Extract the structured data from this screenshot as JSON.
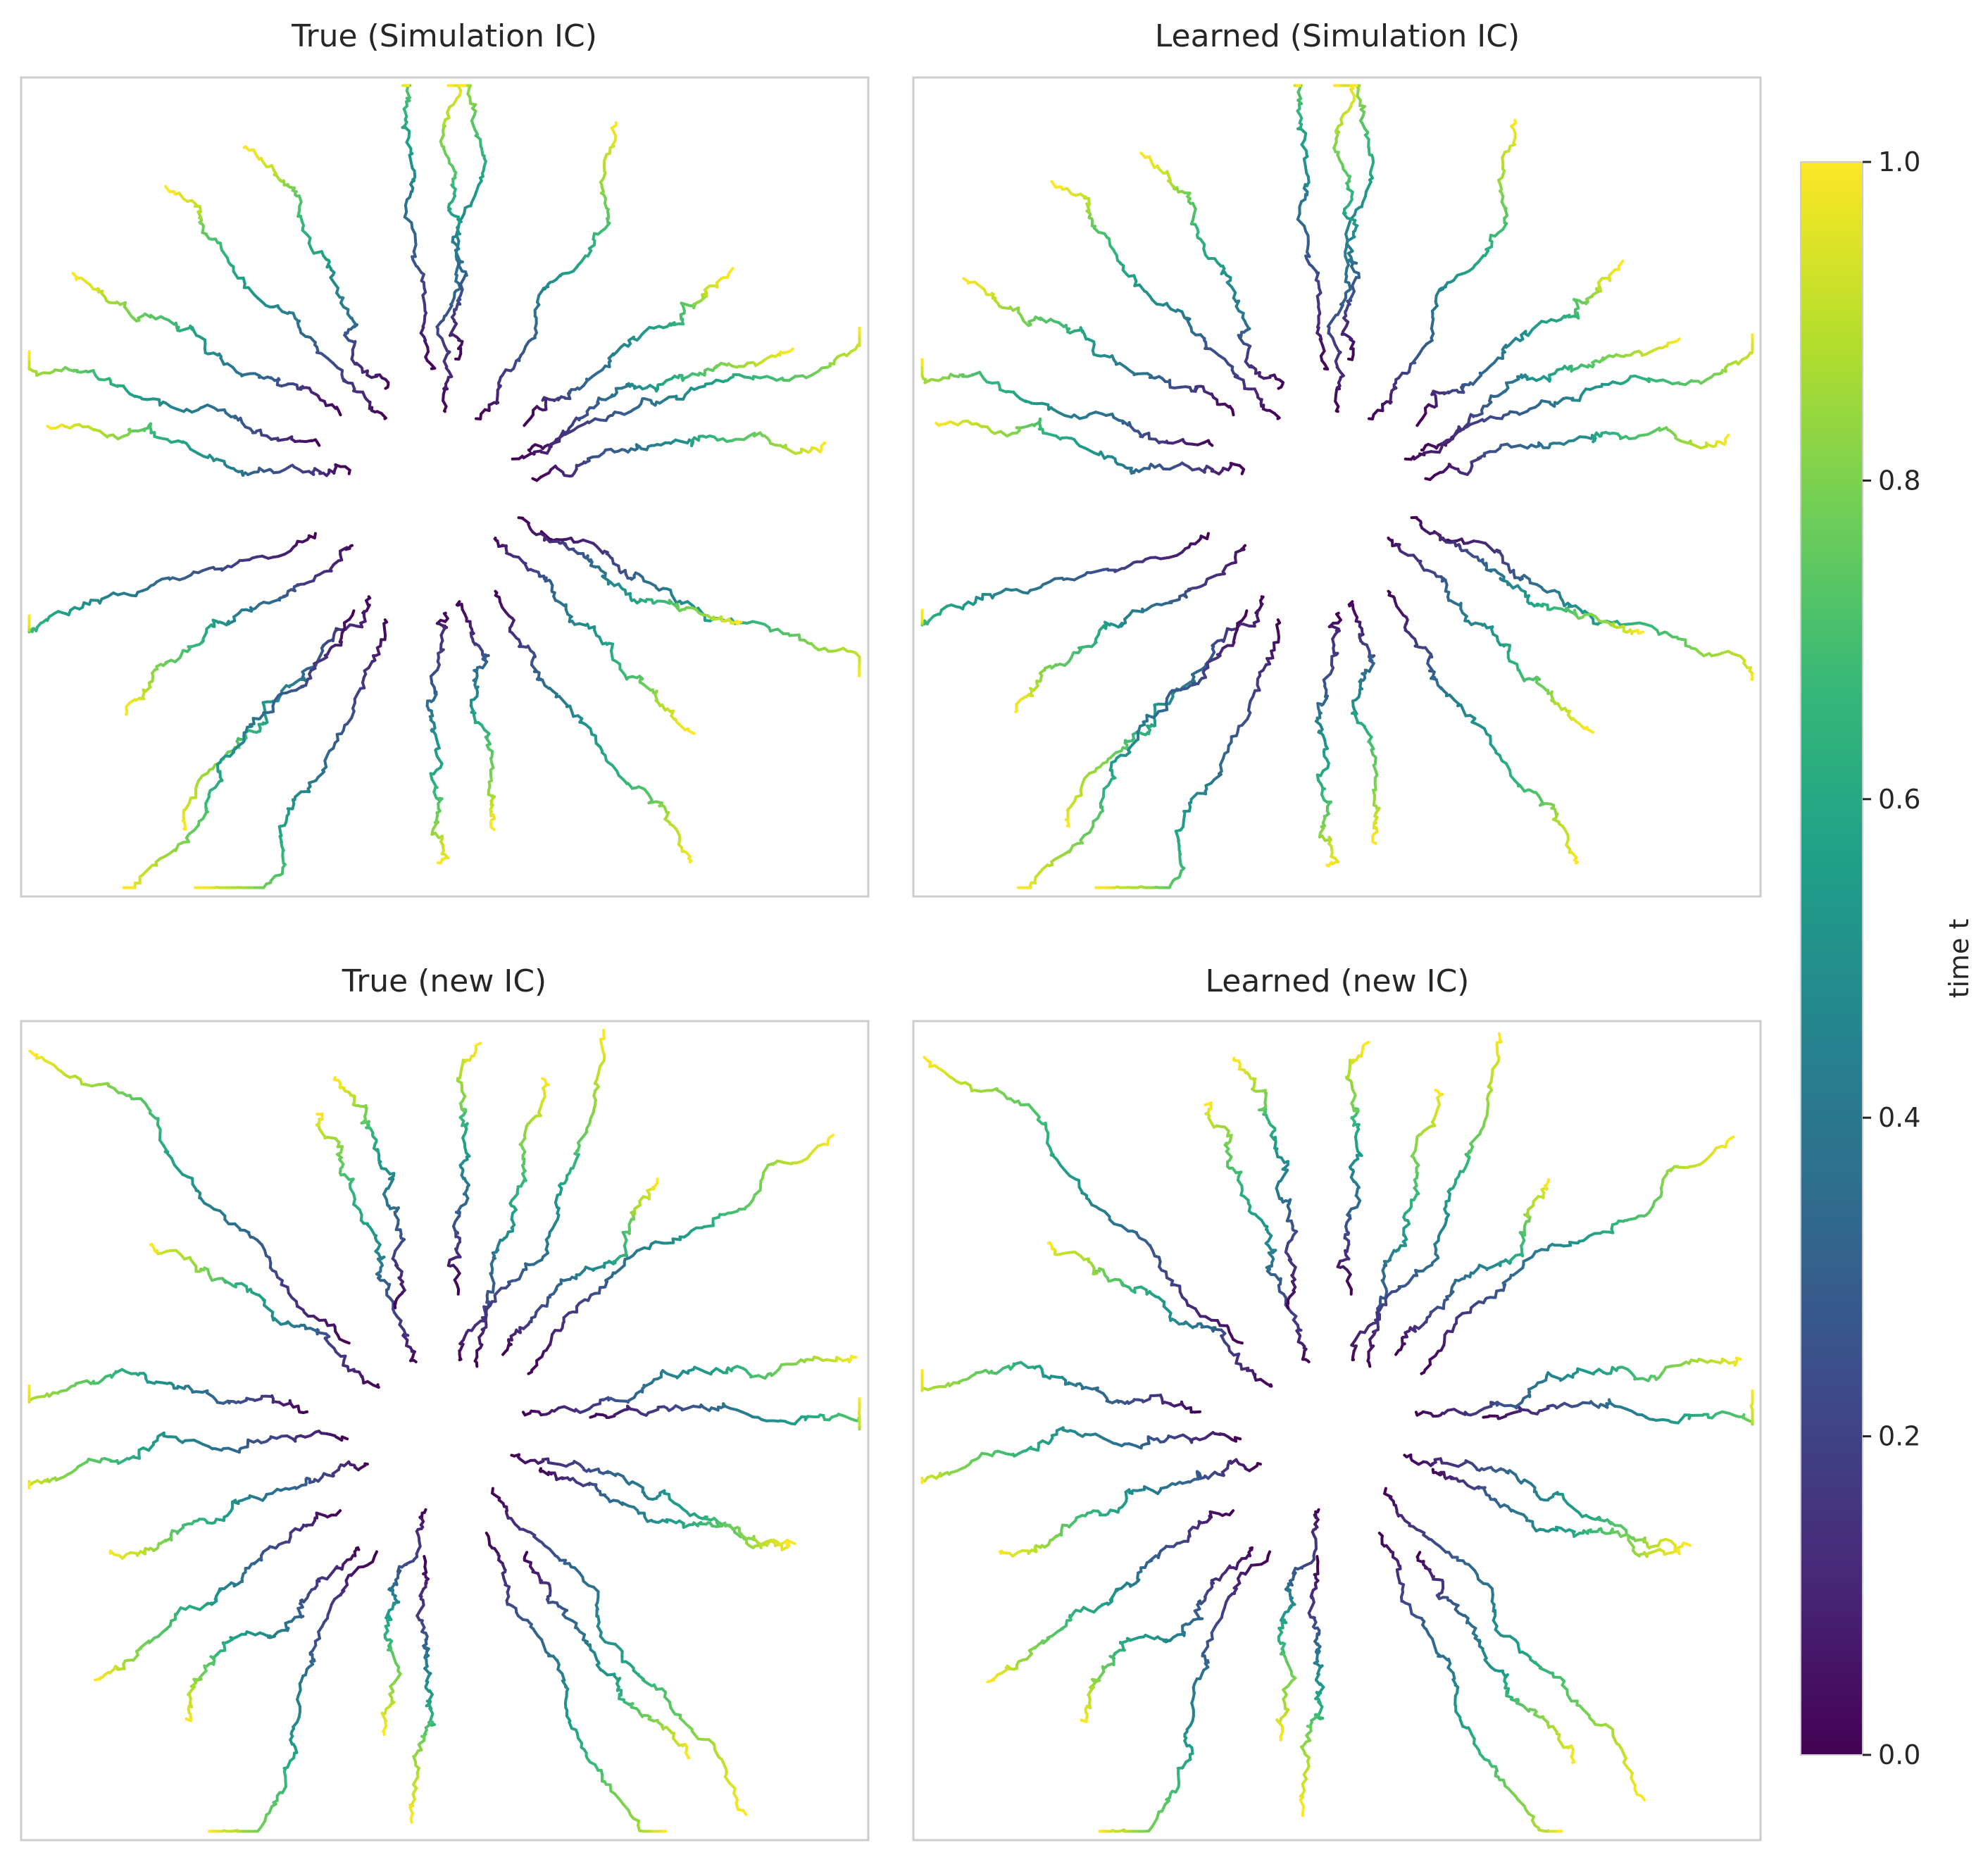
{
  "chart_data": [
    {
      "type": "line",
      "title": "True (Simulation IC)",
      "description_series": "stochastic particle trajectories radiating outward from a common center, colored by time t",
      "num_trajectories": 24,
      "seed": 11,
      "xlabel": "",
      "ylabel": "",
      "grid": false
    },
    {
      "type": "line",
      "title": "Learned (Simulation IC)",
      "num_trajectories": 24,
      "seed": 11,
      "xlabel": "",
      "ylabel": "",
      "grid": false
    },
    {
      "type": "line",
      "title": "True (new IC)",
      "num_trajectories": 24,
      "seed": 29,
      "xlabel": "",
      "ylabel": "",
      "grid": false
    },
    {
      "type": "line",
      "title": "Learned (new IC)",
      "num_trajectories": 24,
      "seed": 29,
      "xlabel": "",
      "ylabel": "",
      "grid": false
    }
  ],
  "colorbar": {
    "label": "time t",
    "colormap": "viridis",
    "range": [
      0.0,
      1.0
    ],
    "ticks": [
      "0.0",
      "0.2",
      "0.4",
      "0.6",
      "0.8",
      "1.0"
    ],
    "colors": [
      "#440154",
      "#482878",
      "#3e4989",
      "#31688e",
      "#26828e",
      "#1f9e89",
      "#35b779",
      "#6ece58",
      "#b5de2b",
      "#fde725"
    ]
  }
}
